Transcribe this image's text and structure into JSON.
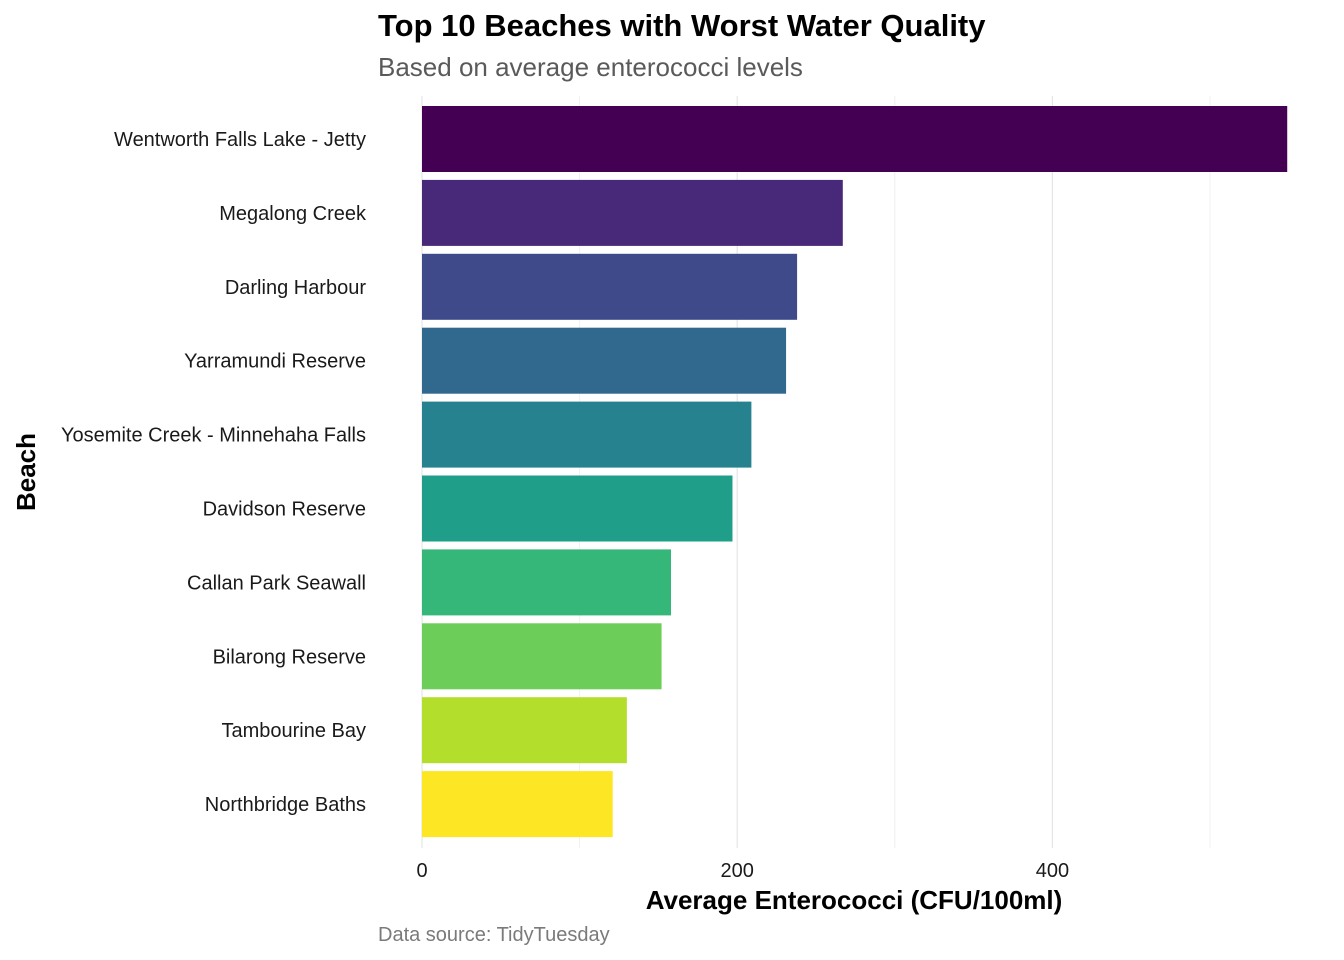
{
  "chart_data": {
    "type": "bar",
    "orientation": "horizontal",
    "title": "Top 10 Beaches with Worst Water Quality",
    "subtitle": "Based on average enterococci levels",
    "caption": "Data source: TidyTuesday",
    "xlabel": "Average Enterococci (CFU/100ml)",
    "ylabel": "Beach",
    "xlim": [
      0,
      550
    ],
    "x_ticks": [
      0,
      200,
      400
    ],
    "x_minor_ticks": [
      100,
      300,
      500
    ],
    "grid": true,
    "legend": "none",
    "categories": [
      "Wentworth Falls Lake - Jetty",
      "Megalong Creek",
      "Darling Harbour",
      "Yarramundi Reserve",
      "Yosemite Creek - Minnehaha Falls",
      "Davidson Reserve",
      "Callan Park Seawall",
      "Bilarong Reserve",
      "Tambourine Bay",
      "Northbridge Baths"
    ],
    "values": [
      549,
      267,
      238,
      231,
      209,
      197,
      158,
      152,
      130,
      121
    ],
    "colors": [
      "#440154",
      "#482878",
      "#3E4A89",
      "#31688E",
      "#26828E",
      "#1F9E89",
      "#35B779",
      "#6DCD59",
      "#B4DE2C",
      "#FDE725"
    ]
  }
}
